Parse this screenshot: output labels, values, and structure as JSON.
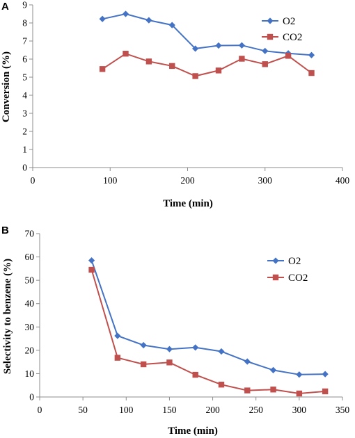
{
  "colors": {
    "o2": "#4472C4",
    "co2": "#C0504D",
    "axis": "#8C8C8C"
  },
  "chart_data": [
    {
      "panel": "A",
      "type": "line",
      "xlabel": "Time (min)",
      "ylabel": "Conversion (%)",
      "xlim": [
        0,
        400
      ],
      "ylim": [
        0,
        9
      ],
      "xticks": [
        0,
        100,
        200,
        300,
        400
      ],
      "yticks": [
        0,
        1,
        2,
        3,
        4,
        5,
        6,
        7,
        8,
        9
      ],
      "grid": false,
      "legend": "top-right",
      "series": [
        {
          "name": "O2",
          "marker": "diamond",
          "color": "#4472C4",
          "points": [
            [
              90,
              8.22
            ],
            [
              120,
              8.5
            ],
            [
              150,
              8.15
            ],
            [
              180,
              7.88
            ],
            [
              210,
              6.58
            ],
            [
              240,
              6.75
            ],
            [
              270,
              6.76
            ],
            [
              300,
              6.45
            ],
            [
              330,
              6.32
            ],
            [
              360,
              6.22
            ]
          ]
        },
        {
          "name": "CO2",
          "marker": "square",
          "color": "#C0504D",
          "points": [
            [
              90,
              5.45
            ],
            [
              120,
              6.3
            ],
            [
              150,
              5.87
            ],
            [
              180,
              5.62
            ],
            [
              210,
              5.06
            ],
            [
              240,
              5.37
            ],
            [
              270,
              6.02
            ],
            [
              300,
              5.72
            ],
            [
              330,
              6.18
            ],
            [
              360,
              5.23
            ]
          ]
        }
      ]
    },
    {
      "panel": "B",
      "type": "line",
      "xlabel": "Time (min)",
      "ylabel": "Selectivity to benzene  (%)",
      "xlim": [
        0,
        350
      ],
      "ylim": [
        0,
        70
      ],
      "xticks": [
        0,
        50,
        100,
        150,
        200,
        250,
        300,
        350
      ],
      "yticks": [
        0,
        10,
        20,
        30,
        40,
        50,
        60,
        70
      ],
      "grid": false,
      "legend": "right",
      "series": [
        {
          "name": "O2",
          "marker": "diamond",
          "color": "#4472C4",
          "points": [
            [
              60,
              58.5
            ],
            [
              90,
              26.2
            ],
            [
              120,
              22.2
            ],
            [
              150,
              20.5
            ],
            [
              180,
              21.2
            ],
            [
              210,
              19.5
            ],
            [
              240,
              15.2
            ],
            [
              270,
              11.5
            ],
            [
              300,
              9.6
            ],
            [
              330,
              9.8
            ]
          ]
        },
        {
          "name": "CO2",
          "marker": "square",
          "color": "#C0504D",
          "points": [
            [
              60,
              54.5
            ],
            [
              90,
              16.8
            ],
            [
              120,
              14.0
            ],
            [
              150,
              14.8
            ],
            [
              180,
              9.5
            ],
            [
              210,
              5.3
            ],
            [
              240,
              2.8
            ],
            [
              270,
              3.2
            ],
            [
              300,
              1.5
            ],
            [
              330,
              2.4
            ]
          ]
        }
      ]
    }
  ]
}
